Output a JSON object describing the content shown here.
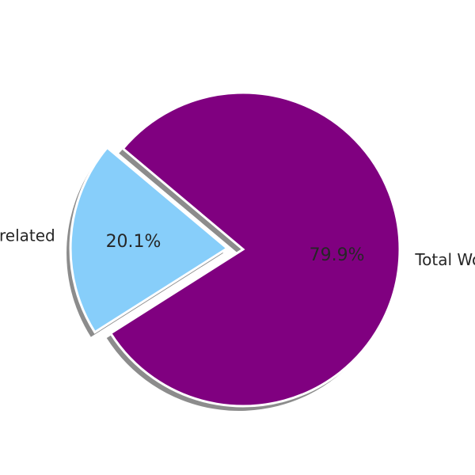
{
  "chart_data": {
    "type": "pie",
    "title": "",
    "slices": [
      {
        "label": "Correlated",
        "value": 20.1,
        "pct_label": "20.1%",
        "color": "#87cefa",
        "exploded": true
      },
      {
        "label": "Total Words",
        "value": 79.9,
        "pct_label": "79.9%",
        "color": "#800080",
        "exploded": false
      }
    ],
    "start_angle_deg": 140,
    "direction": "counterclockwise",
    "shadow": true,
    "edge_color": "#ffffff"
  }
}
